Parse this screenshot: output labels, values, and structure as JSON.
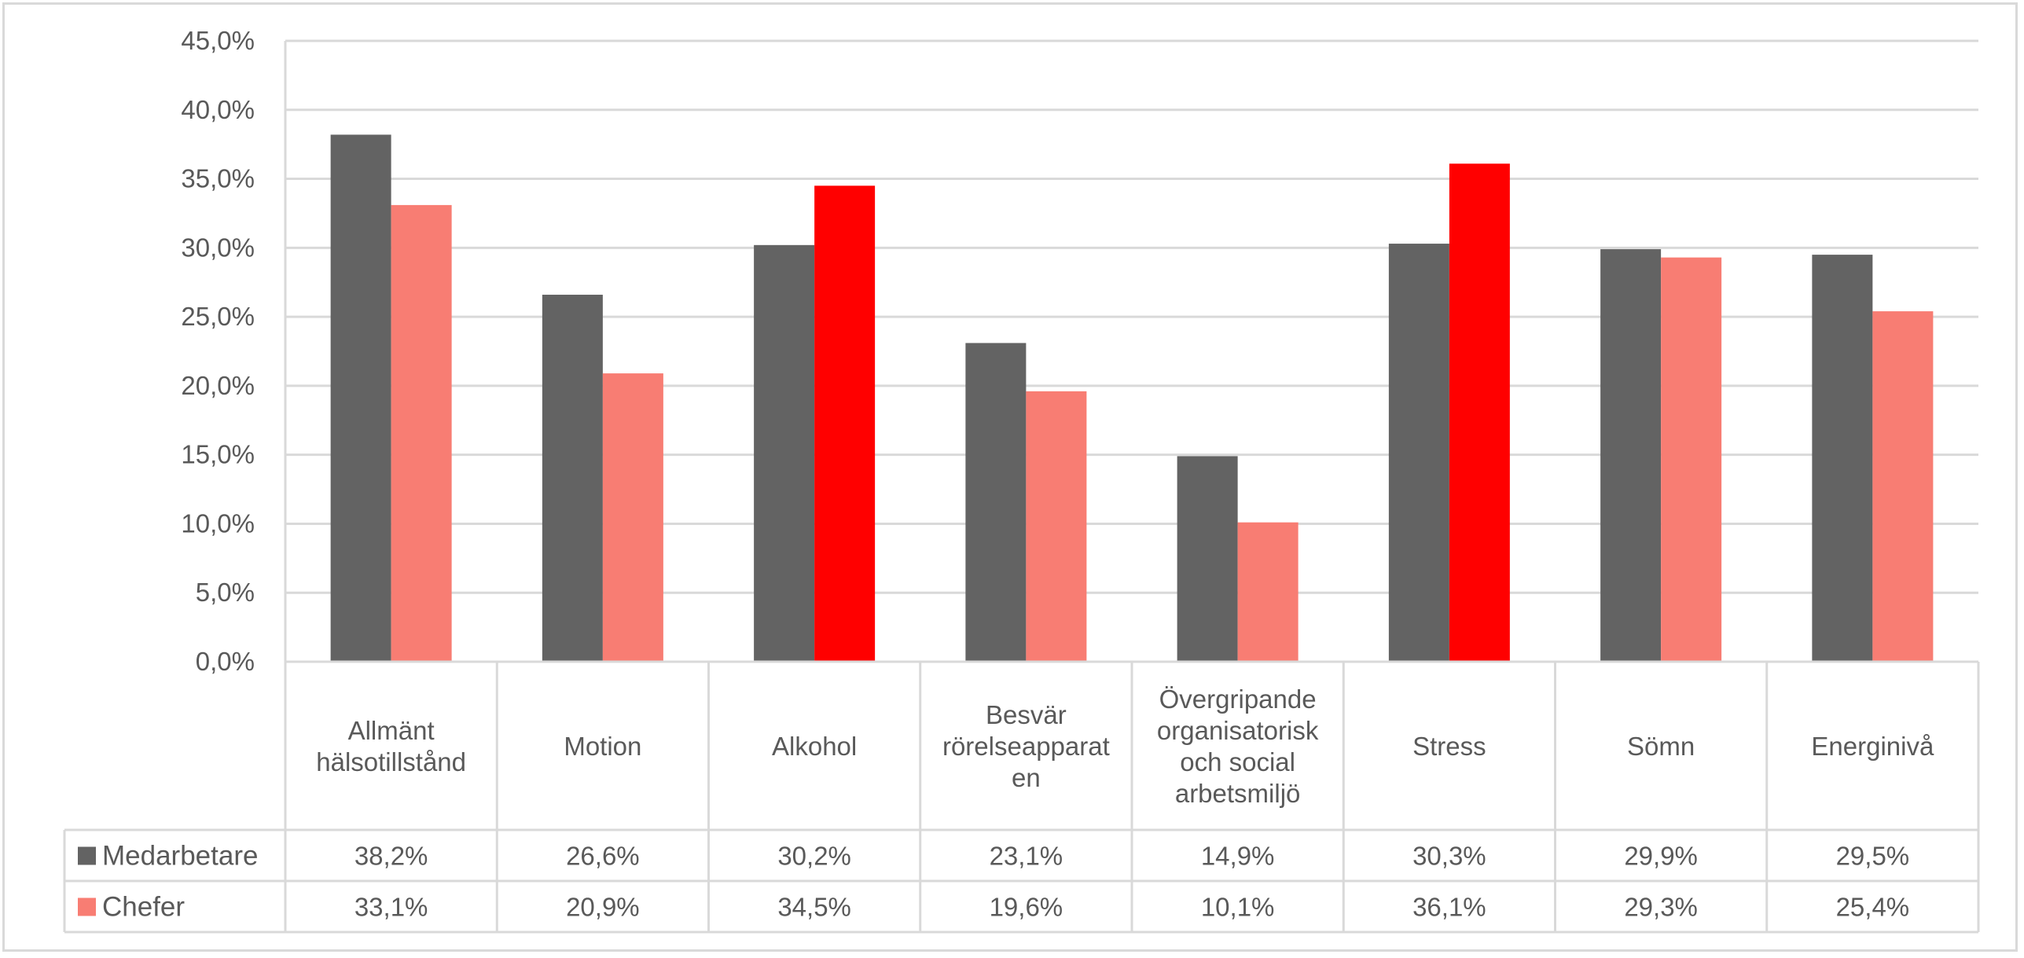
{
  "chart_data": {
    "type": "bar",
    "title": "",
    "xlabel": "",
    "ylabel": "",
    "ylim": [
      0,
      45
    ],
    "ytick_step": 5,
    "ytick_labels": [
      "0,0%",
      "5,0%",
      "10,0%",
      "15,0%",
      "20,0%",
      "25,0%",
      "30,0%",
      "35,0%",
      "40,0%",
      "45,0%"
    ],
    "grid": true,
    "legend_placement": "data-table-left",
    "categories": [
      [
        "Allmänt",
        "hälsotillstånd"
      ],
      [
        "Motion"
      ],
      [
        "Alkohol"
      ],
      [
        "Besvär",
        "rörelseapparat",
        "en"
      ],
      [
        "Övergripande",
        "organisatorisk",
        "och social",
        "arbetsmiljö"
      ],
      [
        "Stress"
      ],
      [
        "Sömn"
      ],
      [
        "Energinivå"
      ]
    ],
    "series": [
      {
        "name": "Medarbetare",
        "color": "#636363",
        "values": [
          38.2,
          26.6,
          30.2,
          23.1,
          14.9,
          30.3,
          29.9,
          29.5
        ],
        "labels": [
          "38,2%",
          "26,6%",
          "30,2%",
          "23,1%",
          "14,9%",
          "30,3%",
          "29,9%",
          "29,5%"
        ]
      },
      {
        "name": "Chefer",
        "color": "#F87D73",
        "highlight_color": "#FF0000",
        "highlight_indices": [
          2,
          5
        ],
        "values": [
          33.1,
          20.9,
          34.5,
          19.6,
          10.1,
          36.1,
          29.3,
          25.4
        ],
        "labels": [
          "33,1%",
          "20,9%",
          "34,5%",
          "19,6%",
          "10,1%",
          "36,1%",
          "29,3%",
          "25,4%"
        ]
      }
    ],
    "gridline_color": "#d9d9d9",
    "text_color": "#595959"
  }
}
